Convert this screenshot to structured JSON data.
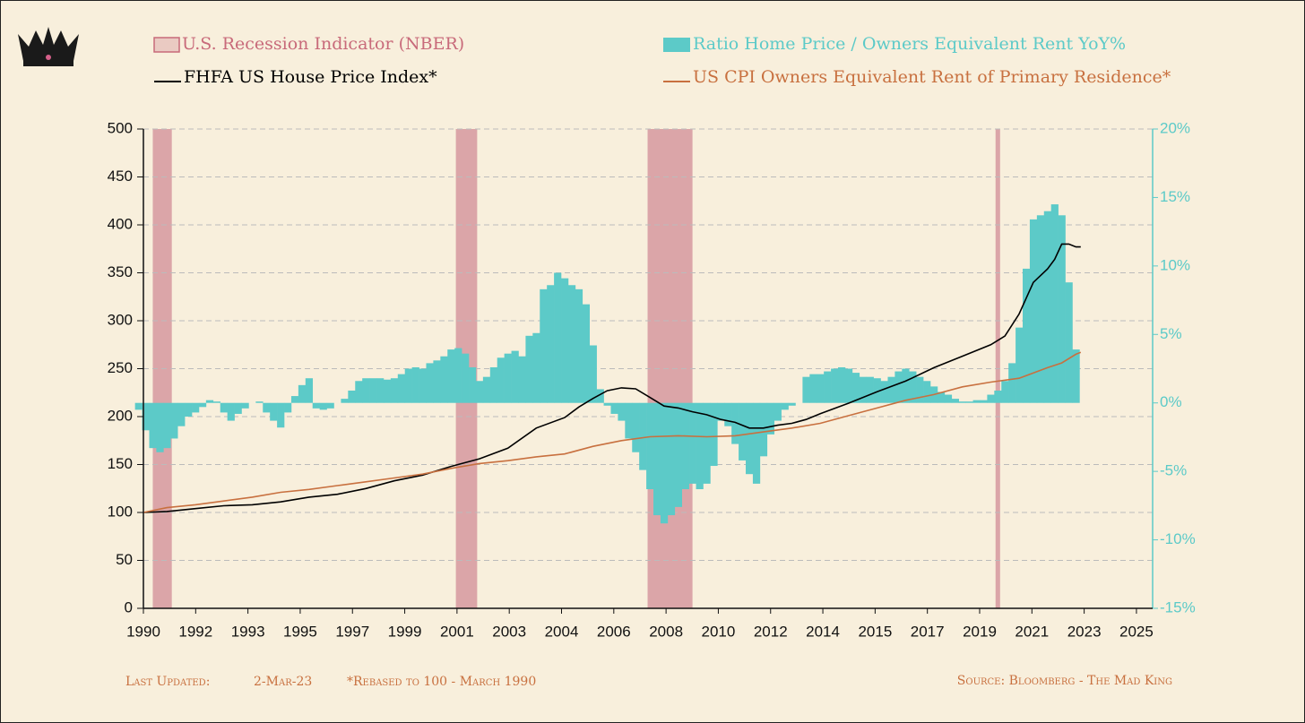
{
  "chart_data": {
    "type": "combo",
    "recessions": {
      "name": "U.S. Recession Indicator (NBER)",
      "color": "#dba5a8",
      "ranges": [
        [
          1990.5,
          1991.17
        ],
        [
          2001.17,
          2001.92
        ],
        [
          2007.92,
          2009.5
        ],
        [
          2020.17,
          2020.33
        ]
      ]
    },
    "series": [
      {
        "name": "Ratio Home Price / Owners Equivalent Rent YoY%",
        "type": "bar",
        "axis": "y2",
        "color": "#5ccac8",
        "x": [
          1990,
          1990.25,
          1990.5,
          1990.75,
          1991,
          1991.25,
          1991.5,
          1991.75,
          1992,
          1992.25,
          1992.5,
          1992.75,
          1993,
          1993.25,
          1993.5,
          1993.75,
          1994,
          1994.25,
          1994.5,
          1994.75,
          1995,
          1995.25,
          1995.5,
          1995.75,
          1996,
          1996.25,
          1996.5,
          1996.75,
          1997,
          1997.25,
          1997.5,
          1997.75,
          1998,
          1998.25,
          1998.5,
          1998.75,
          1999,
          1999.25,
          1999.5,
          1999.75,
          2000,
          2000.25,
          2000.5,
          2000.75,
          2001,
          2001.25,
          2001.5,
          2001.75,
          2002,
          2002.25,
          2002.5,
          2002.75,
          2003,
          2003.25,
          2003.5,
          2003.75,
          2004,
          2004.25,
          2004.5,
          2004.75,
          2005,
          2005.25,
          2005.5,
          2005.75,
          2006,
          2006.25,
          2006.5,
          2006.75,
          2007,
          2007.25,
          2007.5,
          2007.75,
          2008,
          2008.25,
          2008.5,
          2008.75,
          2009,
          2009.25,
          2009.5,
          2009.75,
          2010,
          2010.25,
          2010.5,
          2010.75,
          2011,
          2011.25,
          2011.5,
          2011.75,
          2012,
          2012.25,
          2012.5,
          2012.75,
          2013,
          2013.25,
          2013.5,
          2013.75,
          2014,
          2014.25,
          2014.5,
          2014.75,
          2015,
          2015.25,
          2015.5,
          2015.75,
          2016,
          2016.25,
          2016.5,
          2016.75,
          2017,
          2017.25,
          2017.5,
          2017.75,
          2018,
          2018.25,
          2018.5,
          2018.75,
          2019,
          2019.25,
          2019.5,
          2019.75,
          2020,
          2020.25,
          2020.5,
          2020.75,
          2021,
          2021.25,
          2021.5,
          2021.75,
          2022,
          2022.25,
          2022.5,
          2022.75,
          2023
        ],
        "values": [
          -0.5,
          -2,
          -3.3,
          -3.6,
          -3.3,
          -2.6,
          -1.7,
          -1,
          -0.7,
          -0.3,
          0.2,
          0.1,
          -0.7,
          -1.3,
          -0.8,
          -0.4,
          0,
          0.1,
          -0.7,
          -1.3,
          -1.8,
          -0.7,
          0.5,
          1.3,
          1.8,
          -0.4,
          -0.5,
          -0.4,
          0,
          0.3,
          0.9,
          1.6,
          1.8,
          1.8,
          1.8,
          1.7,
          1.8,
          2.1,
          2.5,
          2.6,
          2.5,
          2.9,
          3.1,
          3.4,
          3.9,
          4.0,
          3.6,
          2.6,
          1.6,
          1.9,
          2.6,
          3.3,
          3.6,
          3.8,
          3.4,
          4.9,
          5.1,
          8.3,
          8.6,
          9.5,
          9.1,
          8.6,
          8.3,
          7.2,
          4.2,
          1.0,
          -0.2,
          -0.8,
          -1.3,
          -2.6,
          -3.6,
          -4.9,
          -6.3,
          -8.2,
          -8.8,
          -8.2,
          -7.6,
          -6.3,
          -5.9,
          -6.3,
          -5.9,
          -4.6,
          -1.3,
          -1.7,
          -3,
          -4.2,
          -5.2,
          -5.9,
          -3.9,
          -2.3,
          -1.3,
          -0.5,
          -0.2,
          0,
          1.9,
          2.1,
          2.1,
          2.3,
          2.5,
          2.6,
          2.5,
          2.2,
          1.9,
          1.9,
          1.8,
          1.6,
          1.9,
          2.3,
          2.5,
          2.3,
          1.9,
          1.6,
          1.2,
          0.8,
          0.6,
          0.3,
          0.1,
          0.1,
          0.2,
          0.2,
          0.6,
          0.9,
          1.6,
          2.9,
          5.5,
          9.8,
          13.4,
          13.7,
          14.0,
          14.5,
          13.7,
          8.8,
          3.9
        ]
      },
      {
        "name": "FHFA US House Price Index*",
        "type": "line",
        "color": "#000000",
        "x": [
          1990.17,
          1991,
          1992,
          1993,
          1994,
          1995,
          1996,
          1997,
          1998,
          1999,
          2000,
          2001,
          2002,
          2003,
          2004,
          2005,
          2005.5,
          2006,
          2006.5,
          2007,
          2007.5,
          2008,
          2008.5,
          2009,
          2009.5,
          2010,
          2010.5,
          2011,
          2011.5,
          2012,
          2012.5,
          2013,
          2013.5,
          2014,
          2015,
          2016,
          2017,
          2018,
          2019,
          2020,
          2020.5,
          2021,
          2021.5,
          2022,
          2022.25,
          2022.5,
          2022.75,
          2023,
          2023.17
        ],
        "values": [
          100,
          101,
          104,
          107,
          108,
          111,
          116,
          119,
          125,
          133,
          139,
          148,
          156,
          167,
          188,
          199,
          210,
          219,
          227,
          230,
          229,
          220,
          211,
          209,
          205,
          202,
          197,
          194,
          188,
          188,
          191,
          193,
          197,
          203,
          214,
          226,
          237,
          251,
          263,
          275,
          284,
          307,
          340,
          354,
          364,
          380,
          380,
          377,
          377
        ]
      },
      {
        "name": "US CPI Owners Equivalent Rent of Primary Residence*",
        "type": "line",
        "color": "#c8703f",
        "x": [
          1990.17,
          1991,
          1992,
          1993,
          1994,
          1995,
          1996,
          1997,
          1998,
          1999,
          2000,
          2001,
          2002,
          2003,
          2004,
          2005,
          2006,
          2007,
          2008,
          2009,
          2010,
          2011,
          2012,
          2013,
          2014,
          2015,
          2016,
          2017,
          2018,
          2019,
          2020,
          2021,
          2022,
          2022.5,
          2023,
          2023.17
        ],
        "values": [
          100,
          105,
          108,
          112,
          116,
          121,
          124,
          128,
          132,
          136,
          140,
          146,
          151,
          154,
          158,
          161,
          169,
          175,
          179,
          180,
          179,
          180,
          184,
          188,
          193,
          201,
          209,
          217,
          223,
          231,
          236,
          240,
          251,
          256,
          265,
          267
        ]
      }
    ],
    "xlim": [
      1990.17,
      2025.7
    ],
    "xticks": [
      {
        "value": 1990.17,
        "label": "1990"
      },
      {
        "value": 1992.01,
        "label": "1992"
      },
      {
        "value": 1993.85,
        "label": "1993"
      },
      {
        "value": 1995.69,
        "label": "1995"
      },
      {
        "value": 1997.53,
        "label": "1997"
      },
      {
        "value": 1999.37,
        "label": "1999"
      },
      {
        "value": 2001.21,
        "label": "2001"
      },
      {
        "value": 2003.05,
        "label": "2003"
      },
      {
        "value": 2004.89,
        "label": "2004"
      },
      {
        "value": 2006.73,
        "label": "2006"
      },
      {
        "value": 2008.57,
        "label": "2008"
      },
      {
        "value": 2010.41,
        "label": "2010"
      },
      {
        "value": 2012.25,
        "label": "2012"
      },
      {
        "value": 2014.09,
        "label": "2014"
      },
      {
        "value": 2015.93,
        "label": "2015"
      },
      {
        "value": 2017.77,
        "label": "2017"
      },
      {
        "value": 2019.61,
        "label": "2019"
      },
      {
        "value": 2021.45,
        "label": "2021"
      },
      {
        "value": 2023.29,
        "label": "2023"
      },
      {
        "value": 2025.13,
        "label": "2025"
      }
    ],
    "ylim": [
      0,
      500
    ],
    "yticks": [
      0,
      50,
      100,
      150,
      200,
      250,
      300,
      350,
      400,
      450,
      500
    ],
    "y2lim": [
      -15,
      20
    ],
    "y2ticks": [
      {
        "value": -15,
        "label": "-15%"
      },
      {
        "value": -10,
        "label": "-10%"
      },
      {
        "value": -5,
        "label": "-5%"
      },
      {
        "value": 0,
        "label": "0%"
      },
      {
        "value": 5,
        "label": "5%"
      },
      {
        "value": 10,
        "label": "10%"
      },
      {
        "value": 15,
        "label": "15%"
      },
      {
        "value": 20,
        "label": "20%"
      }
    ],
    "y2color": "#5ccac8",
    "grid": true,
    "footer": {
      "updated_label": "Last Updated:",
      "updated_date": "2-Mar-23",
      "note": "*Rebased to 100 - March 1990",
      "source": "Source: Bloomberg - The Mad King"
    }
  }
}
